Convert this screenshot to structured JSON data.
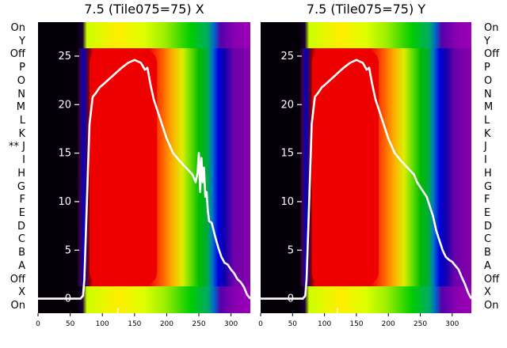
{
  "chart_data": [
    {
      "type": "heatmap",
      "title": "7.5 (Tile075=75) X",
      "xlim": [
        0,
        330
      ],
      "ylim": [
        -1.5,
        28.5
      ],
      "x_ticks": [
        "0",
        "50",
        "100",
        "150",
        "200",
        "250",
        "300"
      ],
      "x_tick_values": [
        0,
        50,
        100,
        150,
        200,
        250,
        300
      ],
      "overlay_ticks": [
        "0",
        "5",
        "10",
        "15",
        "20",
        "25"
      ],
      "overlay_tick_values": [
        0,
        5,
        10,
        15,
        20,
        25
      ],
      "row_labels": [
        "On",
        "X",
        "Off",
        "A",
        "B",
        "C",
        "D",
        "E",
        "F",
        "G",
        "H",
        "I",
        "** J",
        "K",
        "L",
        "M",
        "N",
        "O",
        "P",
        "Off",
        "Y",
        "On"
      ],
      "line_series": {
        "x": [
          0,
          55,
          62,
          66,
          70,
          72,
          76,
          80,
          85,
          90,
          96,
          100,
          110,
          120,
          130,
          140,
          150,
          160,
          166,
          170,
          175,
          180,
          190,
          200,
          210,
          220,
          230,
          240,
          245,
          248,
          250,
          252,
          254,
          256,
          258,
          260,
          262,
          264,
          266,
          270,
          275,
          280,
          285,
          290,
          295,
          300,
          305,
          310,
          315,
          320,
          325,
          330
        ],
        "y": [
          0,
          0,
          0,
          0,
          0.3,
          2,
          10,
          18,
          20.8,
          21.2,
          21.8,
          22,
          22.6,
          23.2,
          23.8,
          24.3,
          24.6,
          24.3,
          23.6,
          23.8,
          22,
          20.5,
          18.5,
          16.5,
          15,
          14.2,
          13.5,
          12.8,
          12,
          13,
          15,
          11,
          14.5,
          12,
          13.5,
          10.5,
          11,
          9,
          8,
          7.8,
          6.5,
          5.3,
          4.3,
          3.7,
          3.5,
          3,
          2.6,
          2,
          1.7,
          1.2,
          0.4,
          0
        ]
      },
      "marker": {
        "x": 124,
        "y": -1.5
      }
    },
    {
      "type": "heatmap",
      "title": "7.5 (Tile075=75) Y",
      "xlim": [
        0,
        330
      ],
      "ylim": [
        -1.5,
        28.5
      ],
      "x_ticks": [
        "0",
        "50",
        "100",
        "150",
        "200",
        "250",
        "300"
      ],
      "x_tick_values": [
        0,
        50,
        100,
        150,
        200,
        250,
        300
      ],
      "overlay_ticks": [
        "0",
        "5",
        "10",
        "15",
        "20",
        "25"
      ],
      "overlay_tick_values": [
        0,
        5,
        10,
        15,
        20,
        25
      ],
      "row_labels": [
        "On",
        "X",
        "Off",
        "A",
        "B",
        "C",
        "D",
        "E",
        "F",
        "G",
        "H",
        "I",
        "J",
        "K",
        "L",
        "M",
        "N",
        "O",
        "P",
        "Off",
        "Y",
        "On"
      ],
      "line_series": {
        "x": [
          0,
          55,
          62,
          66,
          70,
          72,
          76,
          80,
          85,
          90,
          96,
          100,
          110,
          120,
          130,
          140,
          150,
          160,
          166,
          170,
          175,
          180,
          190,
          200,
          210,
          220,
          230,
          240,
          245,
          250,
          255,
          260,
          265,
          270,
          275,
          280,
          285,
          290,
          295,
          300,
          305,
          310,
          315,
          320,
          325,
          330
        ],
        "y": [
          0,
          0,
          0,
          0,
          0.3,
          2,
          10,
          18,
          20.8,
          21.2,
          21.8,
          22,
          22.6,
          23.2,
          23.8,
          24.3,
          24.6,
          24.3,
          23.6,
          23.8,
          22,
          20.5,
          18.5,
          16.5,
          15,
          14.2,
          13.5,
          12.8,
          12,
          11.5,
          11,
          10.5,
          9.5,
          8.5,
          7,
          6,
          5,
          4.3,
          4,
          3.8,
          3.4,
          3,
          2.2,
          1.5,
          0.6,
          0
        ]
      },
      "marker": {
        "x": 120,
        "y": -1.5
      }
    }
  ],
  "colors": {
    "line": "#ffffff",
    "colormap": "nipy_spectral"
  }
}
